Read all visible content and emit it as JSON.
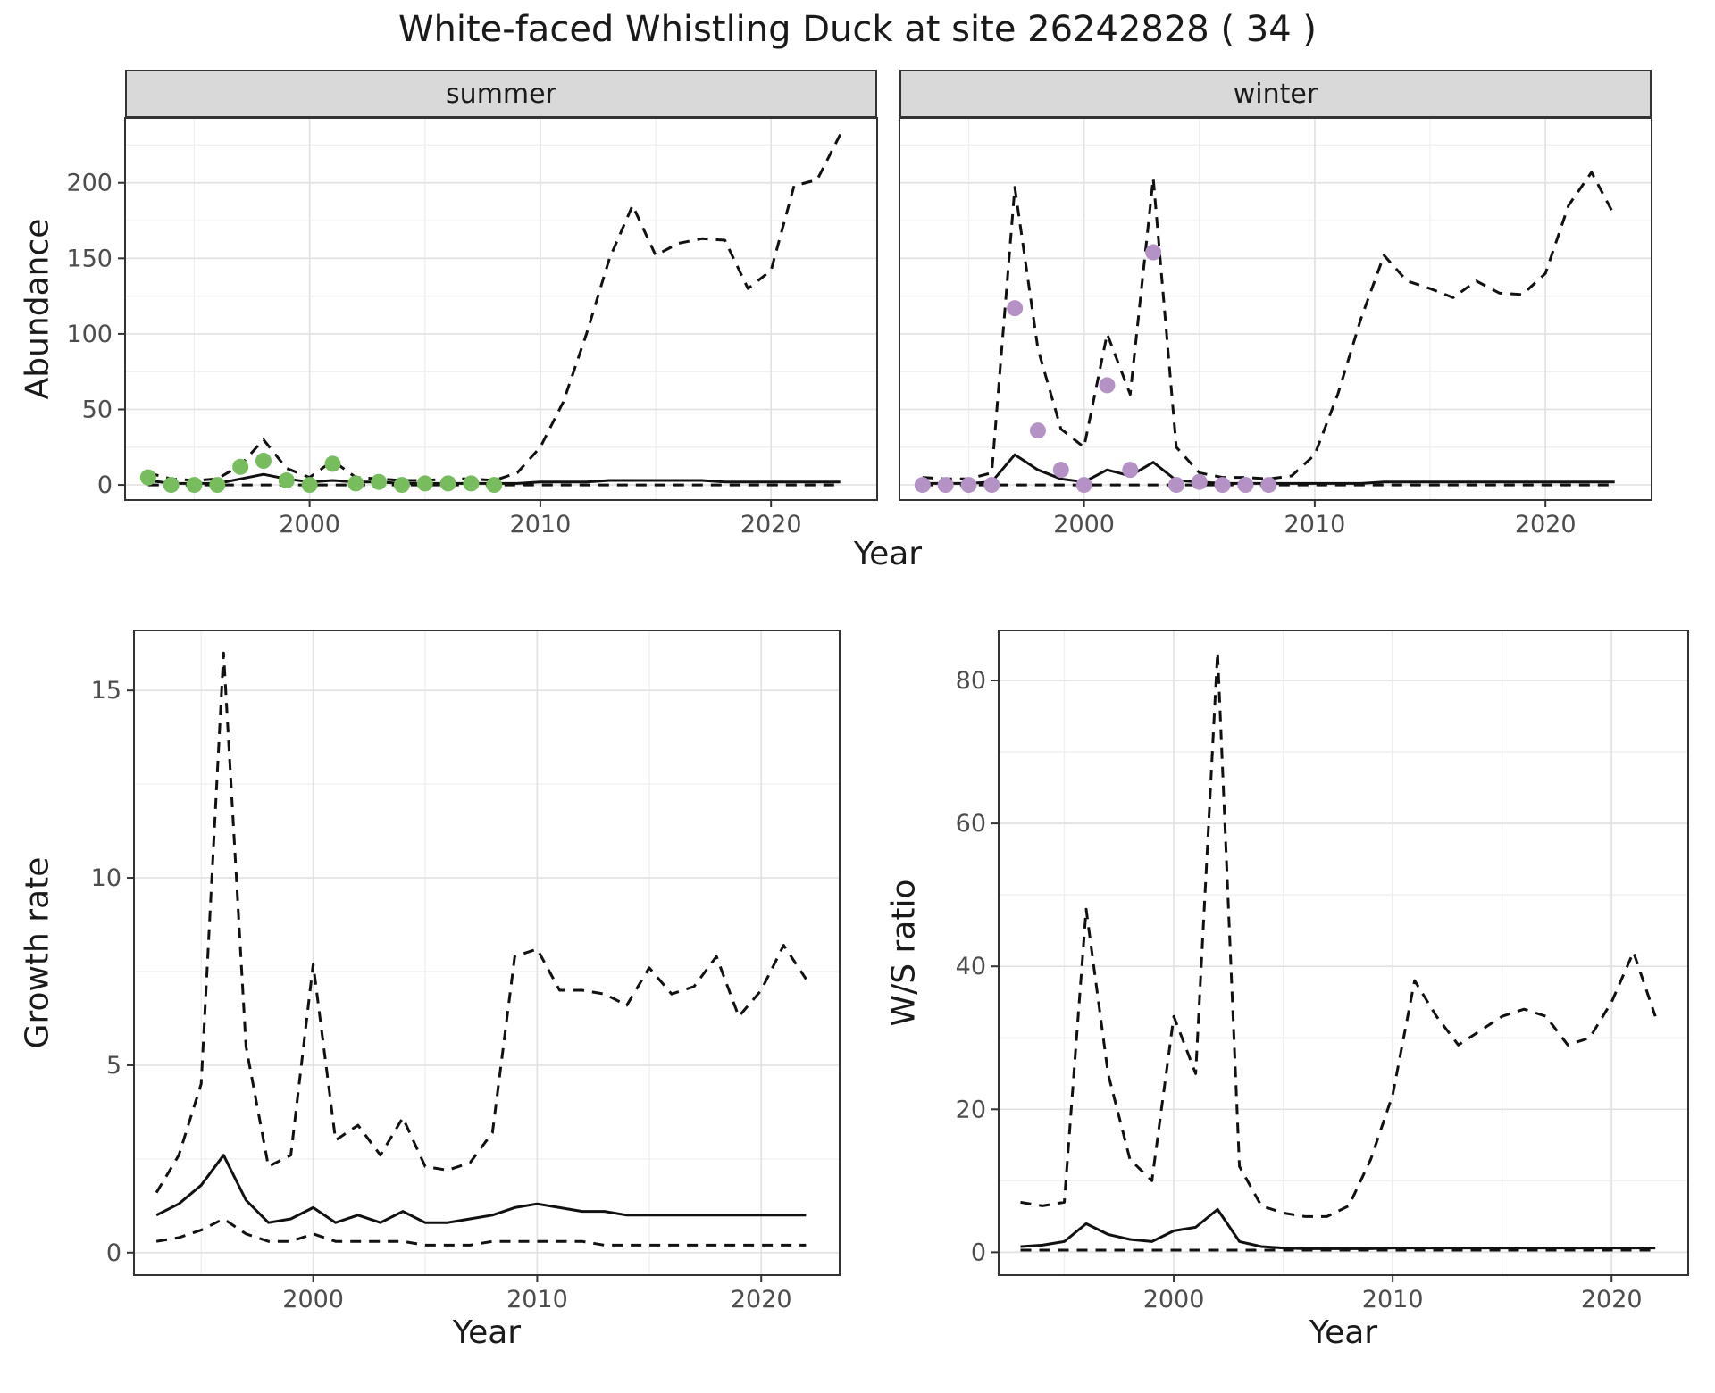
{
  "title": "White-faced Whistling Duck at site 26242828 ( 34 )",
  "colors": {
    "summer_points": "#77bd5e",
    "winter_points": "#b592c6",
    "line": "#111111",
    "grid_major": "#e2e2e2",
    "grid_minor": "#efefef",
    "strip_bg": "#d9d9d9",
    "panel_border": "#333333",
    "tick_text": "#4d4d4d"
  },
  "top": {
    "ylabel": "Abundance",
    "xlabel": "Year",
    "facets": [
      "summer",
      "winter"
    ]
  },
  "bottom_left": {
    "ylabel": "Growth rate",
    "xlabel": "Year"
  },
  "bottom_right": {
    "ylabel": "W/S ratio",
    "xlabel": "Year"
  },
  "chart_data": [
    {
      "panel": "summer",
      "type": "line",
      "title": "summer",
      "xlabel": "Year",
      "ylabel": "Abundance",
      "xlim": [
        1992,
        2024.6
      ],
      "ylim": [
        -10,
        243
      ],
      "xticks": [
        2000,
        2010,
        2020
      ],
      "yticks": [
        0,
        50,
        100,
        150,
        200
      ],
      "grid": true,
      "legend": "none",
      "x": [
        1993,
        1994,
        1995,
        1996,
        1997,
        1998,
        1999,
        2000,
        2001,
        2002,
        2003,
        2004,
        2005,
        2006,
        2007,
        2008,
        2009,
        2010,
        2011,
        2012,
        2013,
        2014,
        2015,
        2016,
        2017,
        2018,
        2019,
        2020,
        2021,
        2022,
        2023
      ],
      "series": [
        {
          "name": "upper_95ci",
          "style": "dashed",
          "values": [
            8,
            4,
            3,
            4,
            13,
            30,
            11,
            5,
            16,
            5,
            4,
            3,
            3,
            4,
            4,
            3,
            8,
            25,
            55,
            100,
            150,
            185,
            152,
            160,
            163,
            162,
            130,
            142,
            198,
            202,
            232
          ]
        },
        {
          "name": "median",
          "style": "solid",
          "values": [
            3,
            1,
            1,
            1,
            4,
            7,
            4,
            2,
            3,
            2,
            2,
            1,
            1,
            1,
            1,
            1,
            1,
            2,
            2,
            2,
            3,
            3,
            3,
            3,
            3,
            2,
            2,
            2,
            2,
            2,
            2
          ]
        },
        {
          "name": "lower_95ci",
          "style": "dashed",
          "values": [
            0,
            0,
            0,
            0,
            0,
            0,
            0,
            0,
            0,
            0,
            0,
            0,
            0,
            0,
            0,
            0,
            0,
            0,
            0,
            0,
            0,
            0,
            0,
            0,
            0,
            0,
            0,
            0,
            0,
            0,
            0
          ]
        }
      ],
      "points": {
        "name": "observed-summer",
        "color": "#77bd5e",
        "x": [
          1993,
          1994,
          1995,
          1996,
          1997,
          1998,
          1999,
          2000,
          2001,
          2002,
          2003,
          2004,
          2005,
          2006,
          2007,
          2008
        ],
        "y": [
          5,
          0,
          0,
          0,
          12,
          16,
          3,
          0,
          14,
          1,
          2,
          0,
          1,
          1,
          1,
          0
        ]
      }
    },
    {
      "panel": "winter",
      "type": "line",
      "title": "winter",
      "xlabel": "Year",
      "ylabel": "Abundance",
      "xlim": [
        1992,
        2024.6
      ],
      "ylim": [
        -10,
        243
      ],
      "xticks": [
        2000,
        2010,
        2020
      ],
      "yticks": [
        0,
        50,
        100,
        150,
        200
      ],
      "grid": true,
      "legend": "none",
      "x": [
        1993,
        1994,
        1995,
        1996,
        1997,
        1998,
        1999,
        2000,
        2001,
        2002,
        2003,
        2004,
        2005,
        2006,
        2007,
        2008,
        2009,
        2010,
        2011,
        2012,
        2013,
        2014,
        2015,
        2016,
        2017,
        2018,
        2019,
        2020,
        2021,
        2022,
        2023
      ],
      "series": [
        {
          "name": "upper_95ci",
          "style": "dashed",
          "values": [
            5,
            4,
            4,
            8,
            197,
            90,
            37,
            25,
            100,
            60,
            203,
            25,
            8,
            5,
            5,
            4,
            6,
            20,
            60,
            110,
            152,
            135,
            130,
            124,
            135,
            127,
            126,
            140,
            185,
            207,
            178
          ]
        },
        {
          "name": "median",
          "style": "solid",
          "values": [
            1,
            1,
            1,
            2,
            20,
            10,
            4,
            2,
            10,
            6,
            15,
            3,
            2,
            1,
            1,
            1,
            1,
            1,
            1,
            1,
            2,
            2,
            2,
            2,
            2,
            2,
            2,
            2,
            2,
            2,
            2
          ]
        },
        {
          "name": "lower_95ci",
          "style": "dashed",
          "values": [
            0,
            0,
            0,
            0,
            0,
            0,
            0,
            0,
            0,
            0,
            0,
            0,
            0,
            0,
            0,
            0,
            0,
            0,
            0,
            0,
            0,
            0,
            0,
            0,
            0,
            0,
            0,
            0,
            0,
            0,
            0
          ]
        }
      ],
      "points": {
        "name": "observed-winter",
        "color": "#b592c6",
        "x": [
          1993,
          1994,
          1995,
          1996,
          1997,
          1998,
          1999,
          2000,
          2001,
          2002,
          2003,
          2004,
          2005,
          2006,
          2007,
          2008
        ],
        "y": [
          0,
          0,
          0,
          0,
          117,
          36,
          10,
          0,
          66,
          10,
          154,
          0,
          2,
          0,
          0,
          0
        ]
      }
    },
    {
      "panel": "growth",
      "type": "line",
      "title": "Growth rate",
      "xlabel": "Year",
      "ylabel": "Growth rate",
      "xlim": [
        1992,
        2023.5
      ],
      "ylim": [
        -0.6,
        16.6
      ],
      "xticks": [
        2000,
        2010,
        2020
      ],
      "yticks": [
        0,
        5,
        10,
        15
      ],
      "grid": true,
      "legend": "none",
      "x": [
        1993,
        1994,
        1995,
        1996,
        1997,
        1998,
        1999,
        2000,
        2001,
        2002,
        2003,
        2004,
        2005,
        2006,
        2007,
        2008,
        2009,
        2010,
        2011,
        2012,
        2013,
        2014,
        2015,
        2016,
        2017,
        2018,
        2019,
        2020,
        2021,
        2022
      ],
      "series": [
        {
          "name": "upper_95ci",
          "style": "dashed",
          "values": [
            1.6,
            2.6,
            4.5,
            16,
            5.5,
            2.3,
            2.6,
            7.7,
            3.0,
            3.4,
            2.6,
            3.6,
            2.3,
            2.2,
            2.4,
            3.2,
            7.9,
            8.1,
            7.0,
            7.0,
            6.9,
            6.6,
            7.6,
            6.9,
            7.1,
            7.9,
            6.3,
            7.0,
            8.2,
            7.3
          ]
        },
        {
          "name": "median",
          "style": "solid",
          "values": [
            1.0,
            1.3,
            1.8,
            2.6,
            1.4,
            0.8,
            0.9,
            1.2,
            0.8,
            1.0,
            0.8,
            1.1,
            0.8,
            0.8,
            0.9,
            1.0,
            1.2,
            1.3,
            1.2,
            1.1,
            1.1,
            1.0,
            1.0,
            1.0,
            1.0,
            1.0,
            1.0,
            1.0,
            1.0,
            1.0
          ]
        },
        {
          "name": "lower_95ci",
          "style": "dashed",
          "values": [
            0.3,
            0.4,
            0.6,
            0.9,
            0.5,
            0.3,
            0.3,
            0.5,
            0.3,
            0.3,
            0.3,
            0.3,
            0.2,
            0.2,
            0.2,
            0.3,
            0.3,
            0.3,
            0.3,
            0.3,
            0.2,
            0.2,
            0.2,
            0.2,
            0.2,
            0.2,
            0.2,
            0.2,
            0.2,
            0.2
          ]
        }
      ]
    },
    {
      "panel": "ws",
      "type": "line",
      "title": "W/S ratio",
      "xlabel": "Year",
      "ylabel": "W/S ratio",
      "xlim": [
        1992,
        2023.5
      ],
      "ylim": [
        -3.2,
        87
      ],
      "xticks": [
        2000,
        2010,
        2020
      ],
      "yticks": [
        0,
        20,
        40,
        60,
        80
      ],
      "grid": true,
      "legend": "none",
      "x": [
        1993,
        1994,
        1995,
        1996,
        1997,
        1998,
        1999,
        2000,
        2001,
        2002,
        2003,
        2004,
        2005,
        2006,
        2007,
        2008,
        2009,
        2010,
        2011,
        2012,
        2013,
        2014,
        2015,
        2016,
        2017,
        2018,
        2019,
        2020,
        2021,
        2022
      ],
      "series": [
        {
          "name": "upper_95ci",
          "style": "dashed",
          "values": [
            7,
            6.5,
            7,
            48,
            25,
            13,
            10,
            33,
            25,
            84,
            12,
            6.5,
            5.5,
            5,
            5,
            6.5,
            13,
            22,
            38,
            33,
            29,
            31,
            33,
            34,
            33,
            29,
            30,
            35,
            42,
            33
          ]
        },
        {
          "name": "median",
          "style": "solid",
          "values": [
            0.8,
            1.0,
            1.5,
            4.0,
            2.5,
            1.8,
            1.5,
            3.0,
            3.5,
            6.0,
            1.5,
            0.8,
            0.6,
            0.5,
            0.5,
            0.5,
            0.5,
            0.6,
            0.6,
            0.6,
            0.6,
            0.6,
            0.6,
            0.6,
            0.6,
            0.6,
            0.6,
            0.6,
            0.6,
            0.6
          ]
        },
        {
          "name": "lower_95ci",
          "style": "dashed",
          "values": [
            0.3,
            0.3,
            0.3,
            0.3,
            0.3,
            0.3,
            0.3,
            0.3,
            0.3,
            0.3,
            0.3,
            0.3,
            0.3,
            0.3,
            0.3,
            0.3,
            0.3,
            0.3,
            0.3,
            0.3,
            0.3,
            0.3,
            0.3,
            0.3,
            0.3,
            0.3,
            0.3,
            0.3,
            0.3,
            0.3
          ]
        }
      ]
    }
  ]
}
